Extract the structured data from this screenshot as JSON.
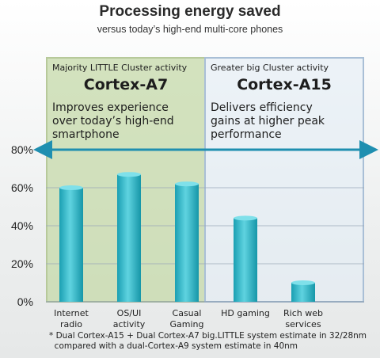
{
  "header": {
    "title": "Processing energy saved",
    "subtitle": "versus today’s high-end multi-core phones"
  },
  "panels": [
    {
      "cluster": "Majority LITTLE Cluster activity",
      "core": "Cortex-A7",
      "description": [
        "Improves experience",
        "over today’s high-end",
        "smartphone"
      ]
    },
    {
      "cluster": "Greater big Cluster activity",
      "core": "Cortex-A15",
      "description": [
        "Delivers efficiency",
        "gains at higher peak",
        "performance"
      ]
    }
  ],
  "chart_data": {
    "type": "bar",
    "categories": [
      [
        "Internet",
        "radio"
      ],
      [
        "OS/UI",
        "activity"
      ],
      [
        "Casual",
        "Gaming"
      ],
      [
        "HD gaming"
      ],
      [
        "Rich web",
        "services"
      ]
    ],
    "values": [
      60,
      67,
      62,
      44,
      10
    ],
    "ylim": [
      0,
      80
    ],
    "yticks": [
      "0%",
      "20%",
      "40%",
      "60%",
      "80%"
    ],
    "bar_color": "#2ab6c7",
    "grid": true
  },
  "footnote": [
    "* Dual Cortex-A15 + Dual Cortex-A7 big.LITTLE system estimate in 32/28nm",
    "  compared with a dual-Cortex-A9 system estimate in 40nm"
  ]
}
